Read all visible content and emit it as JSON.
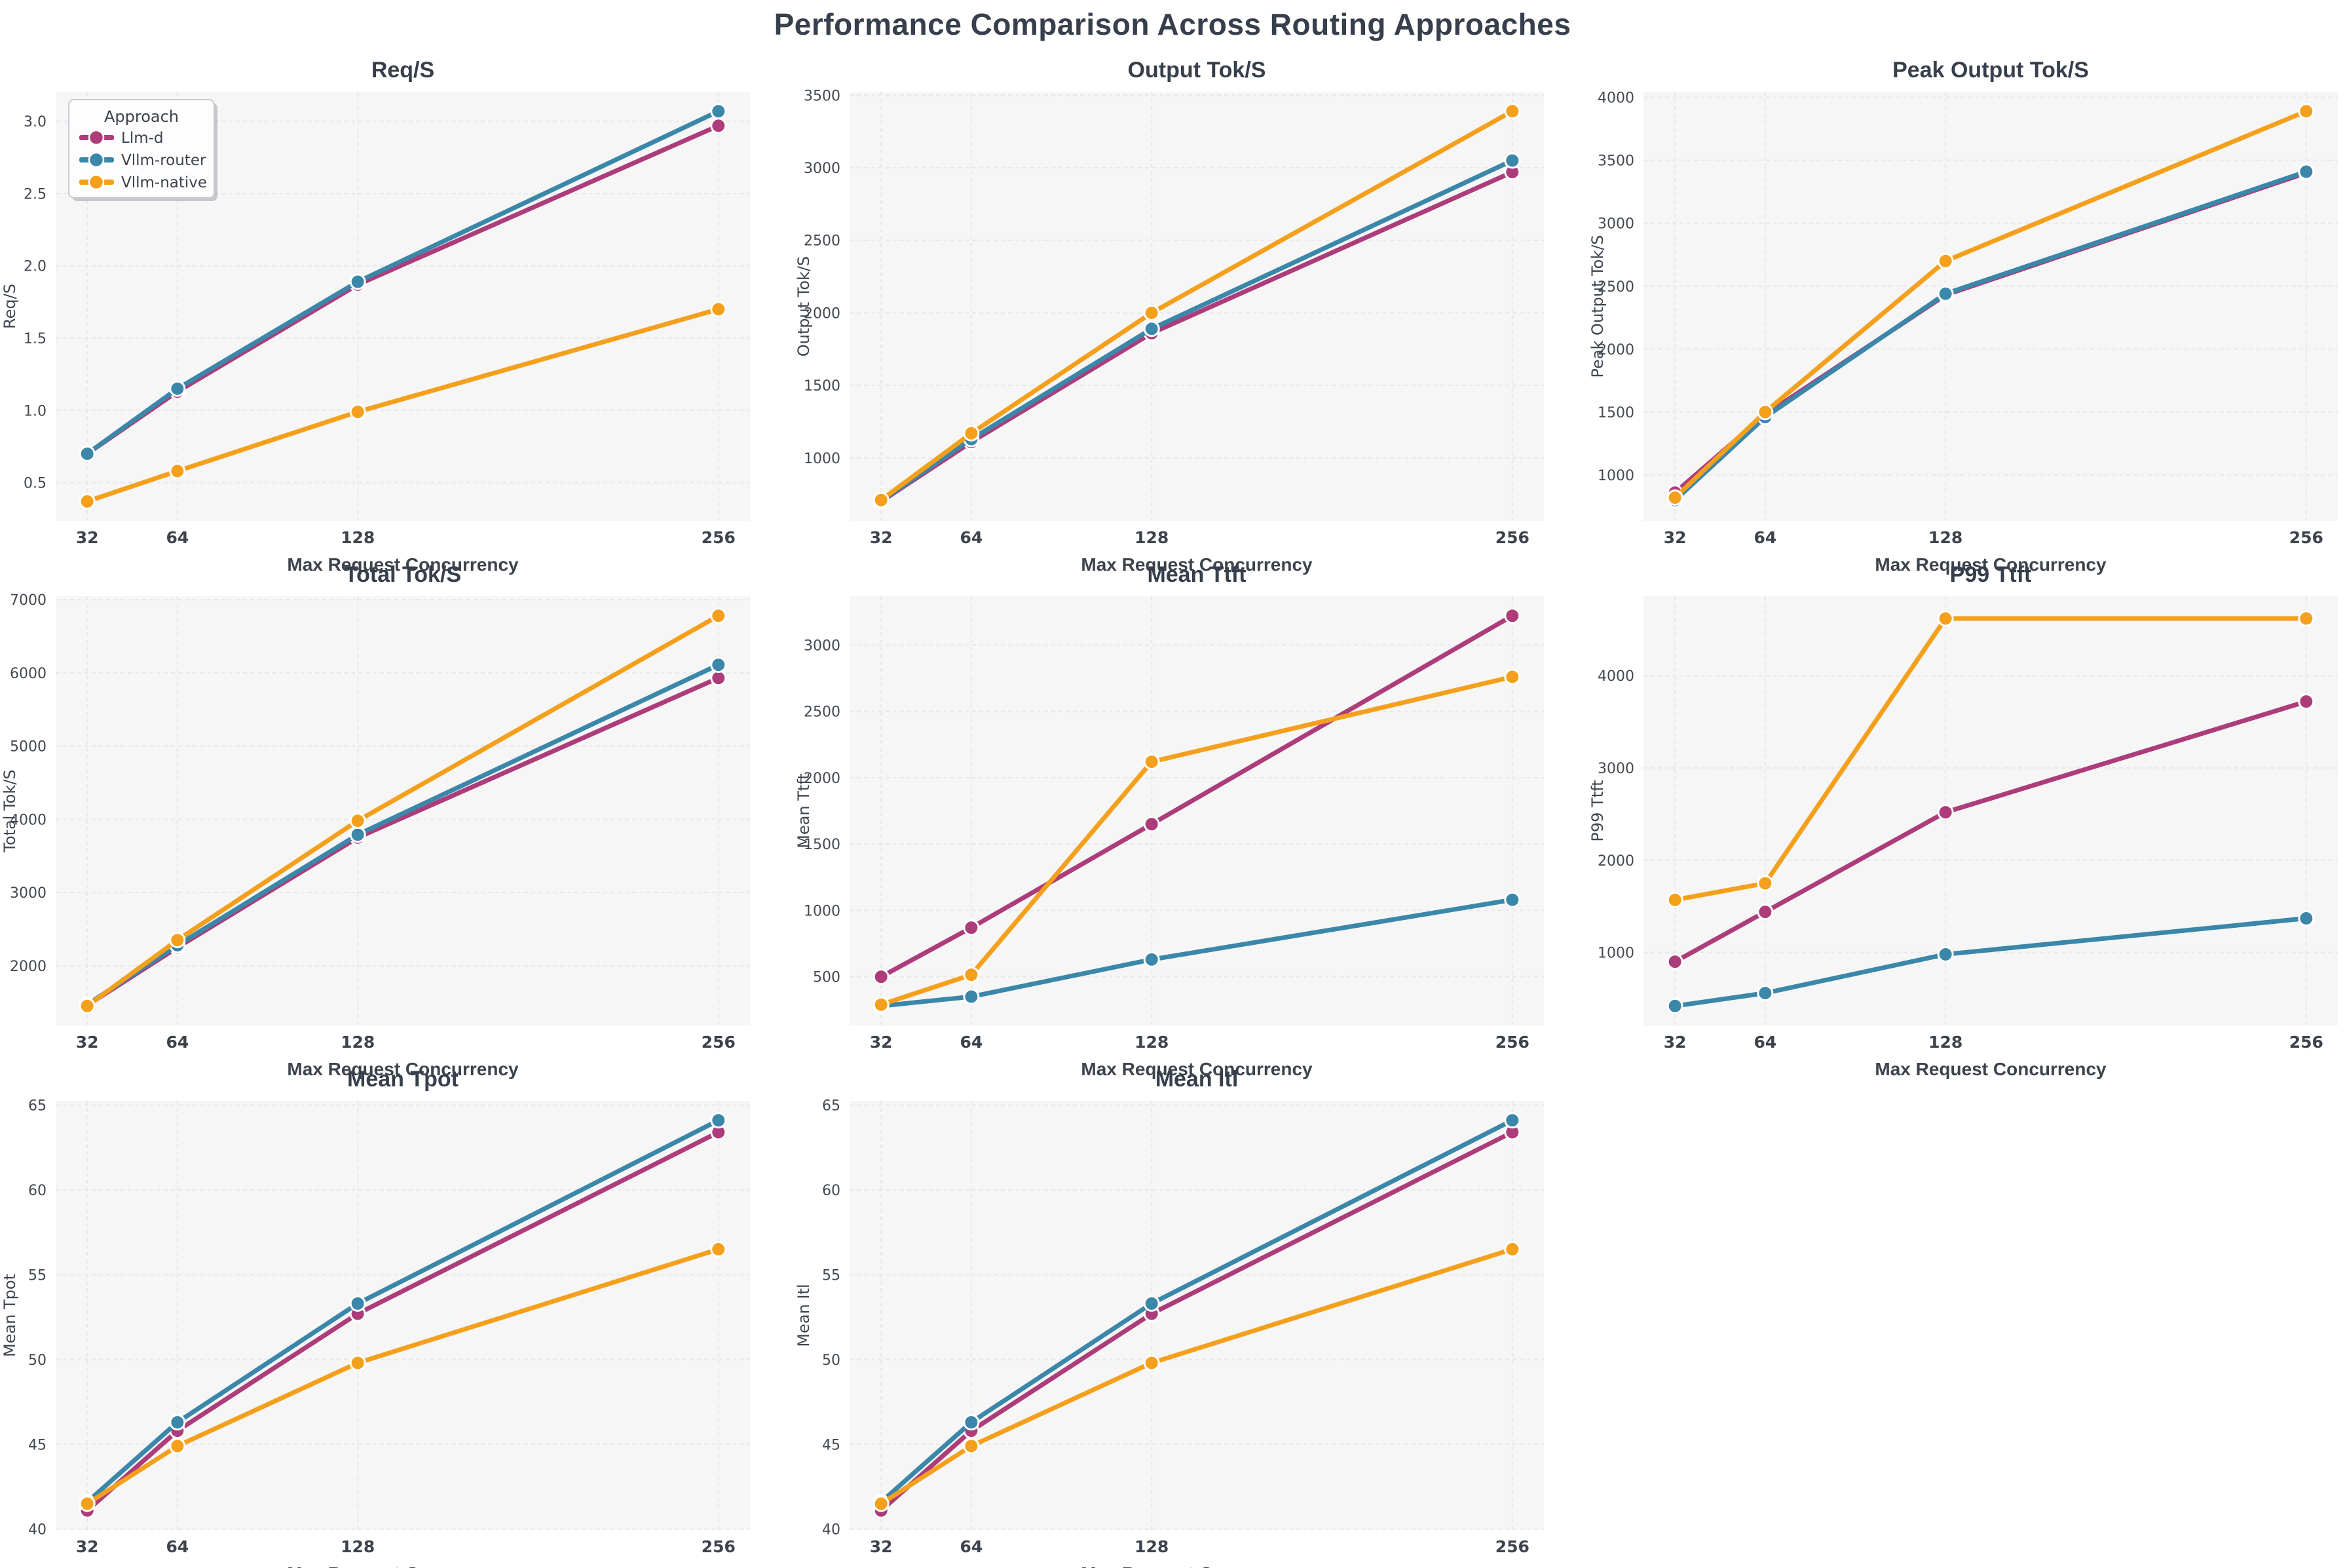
{
  "figure": {
    "title": "Performance Comparison Across Routing Approaches",
    "background": "#ffffff",
    "axes_background": "#f6f6f7",
    "grid_color": "#e7e8ec",
    "title_color": "#363f4b",
    "tick_color": "#43484f"
  },
  "legend": {
    "title": "Approach",
    "entries": [
      "Llm-d",
      "Vllm-router",
      "Vllm-native"
    ]
  },
  "series_meta": [
    {
      "name": "Llm-d",
      "key": "llm_d",
      "color": "#ad3c7a"
    },
    {
      "name": "Vllm-router",
      "key": "vllm_router",
      "color": "#3a87a9"
    },
    {
      "name": "Vllm-native",
      "key": "vllm_native",
      "color": "#f4a01c"
    }
  ],
  "x_axis": {
    "label": "Max Request Concurrency",
    "ticks": [
      32,
      64,
      128,
      256
    ],
    "tick_labels": [
      "32",
      "64",
      "128",
      "256"
    ],
    "lim": [
      20.8,
      267.2
    ]
  },
  "chart_data": [
    {
      "type": "line",
      "key": "req_s",
      "title": "Req/S",
      "ylabel": "Req/S",
      "xlabel": "Max Request Concurrency",
      "x": [
        32,
        64,
        128,
        256
      ],
      "yticks": [
        0.5,
        1.0,
        1.5,
        2.0,
        2.5,
        3.0
      ],
      "ytick_labels": [
        "0.5",
        "1.0",
        "1.5",
        "2.0",
        "2.5",
        "3.0"
      ],
      "ylim": [
        0.235,
        3.205
      ],
      "grid": true,
      "legend": true,
      "series": [
        {
          "name": "Llm-d",
          "values": [
            0.7,
            1.13,
            1.87,
            2.97
          ]
        },
        {
          "name": "Vllm-router",
          "values": [
            0.7,
            1.15,
            1.89,
            3.07
          ]
        },
        {
          "name": "Vllm-native",
          "values": [
            0.37,
            0.58,
            0.99,
            1.7
          ]
        }
      ]
    },
    {
      "type": "line",
      "key": "output_tok_s",
      "title": "Output Tok/S",
      "ylabel": "Output Tok/S",
      "xlabel": "Max Request Concurrency",
      "x": [
        32,
        64,
        128,
        256
      ],
      "yticks": [
        1000,
        1500,
        2000,
        2500,
        3000,
        3500
      ],
      "ytick_labels": [
        "1000",
        "1500",
        "2000",
        "2500",
        "3000",
        "3500"
      ],
      "ylim": [
        566,
        3524
      ],
      "grid": true,
      "legend": false,
      "series": [
        {
          "name": "Llm-d",
          "values": [
            700,
            1110,
            1860,
            2970
          ]
        },
        {
          "name": "Vllm-router",
          "values": [
            705,
            1130,
            1890,
            3050
          ]
        },
        {
          "name": "Vllm-native",
          "values": [
            710,
            1170,
            2000,
            3390
          ]
        }
      ]
    },
    {
      "type": "line",
      "key": "peak_output_tok_s",
      "title": "Peak Output Tok/S",
      "ylabel": "Peak Output Tok/S",
      "xlabel": "Max Request Concurrency",
      "x": [
        32,
        64,
        128,
        256
      ],
      "yticks": [
        1000,
        1500,
        2000,
        2500,
        3000,
        3500,
        4000
      ],
      "ytick_labels": [
        "1000",
        "1500",
        "2000",
        "2500",
        "3000",
        "3500",
        "4000"
      ],
      "ylim": [
        635,
        4045
      ],
      "grid": true,
      "legend": false,
      "series": [
        {
          "name": "Llm-d",
          "values": [
            860,
            1480,
            2430,
            3400
          ]
        },
        {
          "name": "Vllm-router",
          "values": [
            800,
            1460,
            2440,
            3410
          ]
        },
        {
          "name": "Vllm-native",
          "values": [
            820,
            1500,
            2700,
            3890
          ]
        }
      ]
    },
    {
      "type": "line",
      "key": "total_tok_s",
      "title": "Total Tok/S",
      "ylabel": "Total Tok/S",
      "xlabel": "Max Request Concurrency",
      "x": [
        32,
        64,
        128,
        256
      ],
      "yticks": [
        2000,
        3000,
        4000,
        5000,
        6000,
        7000
      ],
      "ytick_labels": [
        "2000",
        "3000",
        "4000",
        "5000",
        "6000",
        "7000"
      ],
      "ylim": [
        1184,
        7046
      ],
      "grid": true,
      "legend": false,
      "series": [
        {
          "name": "Llm-d",
          "values": [
            1460,
            2250,
            3750,
            5930
          ]
        },
        {
          "name": "Vllm-router",
          "values": [
            1470,
            2280,
            3790,
            6110
          ]
        },
        {
          "name": "Vllm-native",
          "values": [
            1450,
            2350,
            3980,
            6780
          ]
        }
      ]
    },
    {
      "type": "line",
      "key": "mean_ttft",
      "title": "Mean Ttft",
      "ylabel": "Mean Ttft",
      "xlabel": "Max Request Concurrency",
      "x": [
        32,
        64,
        128,
        256
      ],
      "yticks": [
        500,
        1000,
        1500,
        2000,
        2500,
        3000
      ],
      "ytick_labels": [
        "500",
        "1000",
        "1500",
        "2000",
        "2500",
        "3000"
      ],
      "ylim": [
        133,
        3367
      ],
      "grid": true,
      "legend": false,
      "series": [
        {
          "name": "Llm-d",
          "values": [
            500,
            870,
            1650,
            3220
          ]
        },
        {
          "name": "Vllm-router",
          "values": [
            280,
            350,
            630,
            1080
          ]
        },
        {
          "name": "Vllm-native",
          "values": [
            290,
            515,
            2120,
            2760
          ]
        }
      ]
    },
    {
      "type": "line",
      "key": "p99_ttft",
      "title": "P99 Ttft",
      "ylabel": "P99 Ttft",
      "xlabel": "Max Request Concurrency",
      "x": [
        32,
        64,
        128,
        256
      ],
      "yticks": [
        1000,
        2000,
        3000,
        4000
      ],
      "ytick_labels": [
        "1000",
        "2000",
        "3000",
        "4000"
      ],
      "ylim": [
        209,
        4861
      ],
      "grid": true,
      "legend": false,
      "series": [
        {
          "name": "Llm-d",
          "values": [
            900,
            1440,
            2520,
            3720
          ]
        },
        {
          "name": "Vllm-router",
          "values": [
            420,
            560,
            980,
            1370
          ]
        },
        {
          "name": "Vllm-native",
          "values": [
            1570,
            1750,
            4620,
            4620
          ]
        }
      ]
    },
    {
      "type": "line",
      "key": "mean_tpot",
      "title": "Mean Tpot",
      "ylabel": "Mean Tpot",
      "xlabel": "Max Request Concurrency",
      "x": [
        32,
        64,
        128,
        256
      ],
      "yticks": [
        40,
        45,
        50,
        55,
        60,
        65
      ],
      "ytick_labels": [
        "40",
        "45",
        "50",
        "55",
        "60",
        "65"
      ],
      "ylim": [
        39.95,
        65.25
      ],
      "grid": true,
      "legend": false,
      "series": [
        {
          "name": "Llm-d",
          "values": [
            41.1,
            45.8,
            52.7,
            63.4
          ]
        },
        {
          "name": "Vllm-router",
          "values": [
            41.6,
            46.3,
            53.3,
            64.1
          ]
        },
        {
          "name": "Vllm-native",
          "values": [
            41.5,
            44.9,
            49.8,
            56.5
          ]
        }
      ]
    },
    {
      "type": "line",
      "key": "mean_itl",
      "title": "Mean Itl",
      "ylabel": "Mean Itl",
      "xlabel": "Max Request Concurrency",
      "x": [
        32,
        64,
        128,
        256
      ],
      "yticks": [
        40,
        45,
        50,
        55,
        60,
        65
      ],
      "ytick_labels": [
        "40",
        "45",
        "50",
        "55",
        "60",
        "65"
      ],
      "ylim": [
        39.95,
        65.25
      ],
      "grid": true,
      "legend": false,
      "series": [
        {
          "name": "Llm-d",
          "values": [
            41.1,
            45.8,
            52.7,
            63.4
          ]
        },
        {
          "name": "Vllm-router",
          "values": [
            41.6,
            46.3,
            53.3,
            64.1
          ]
        },
        {
          "name": "Vllm-native",
          "values": [
            41.5,
            44.9,
            49.8,
            56.5
          ]
        }
      ]
    }
  ]
}
